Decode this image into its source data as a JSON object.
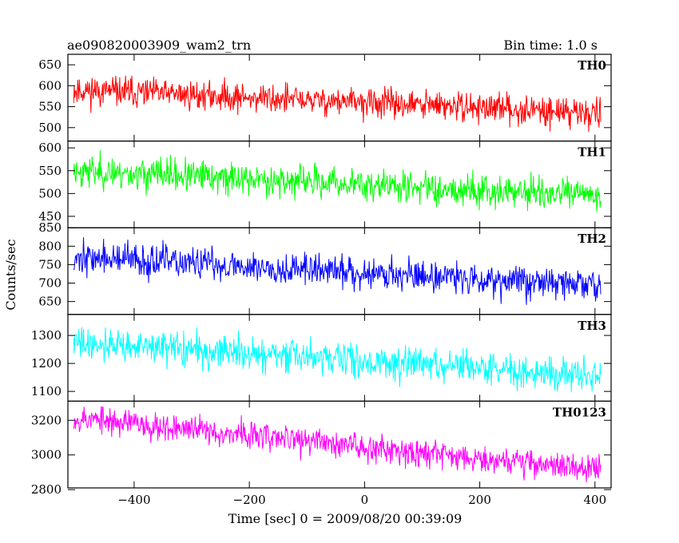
{
  "chart_data": {
    "type": "line",
    "title": "ae090820003909_wam2_trn",
    "subtitle": "Bin time: 1.0 s",
    "xlabel": "Time [sec] 0 = 2009/08/20 00:39:09",
    "ylabel": "Counts/sec",
    "xlim": [
      -515,
      428
    ],
    "xticks": [
      -400,
      -200,
      0,
      200,
      400
    ],
    "x_range": [
      -505,
      410
    ],
    "panels": [
      {
        "name": "TH0",
        "color": "#ff0000",
        "ylim": [
          468,
          675
        ],
        "yticks": [
          500,
          550,
          600,
          650
        ],
        "trend_start": 590,
        "trend_end": 535,
        "noise": 24,
        "seed": 11
      },
      {
        "name": "TH1",
        "color": "#00ff00",
        "ylim": [
          425,
          615
        ],
        "yticks": [
          450,
          500,
          550,
          600
        ],
        "trend_start": 550,
        "trend_end": 495,
        "noise": 24,
        "seed": 23
      },
      {
        "name": "TH2",
        "color": "#0000ff",
        "ylim": [
          615,
          850
        ],
        "yticks": [
          650,
          700,
          750,
          800,
          850
        ],
        "trend_start": 770,
        "trend_end": 695,
        "noise": 30,
        "seed": 37
      },
      {
        "name": "TH3",
        "color": "#00ffff",
        "ylim": [
          1065,
          1375
        ],
        "yticks": [
          1100,
          1200,
          1300
        ],
        "trend_start": 1275,
        "trend_end": 1155,
        "noise": 40,
        "seed": 41
      },
      {
        "name": "TH0123",
        "color": "#ff00ff",
        "ylim": [
          2810,
          3310
        ],
        "yticks": [
          2800,
          3000,
          3200
        ],
        "trend_start": 3215,
        "trend_end": 2915,
        "noise": 55,
        "seed": 53
      }
    ]
  }
}
